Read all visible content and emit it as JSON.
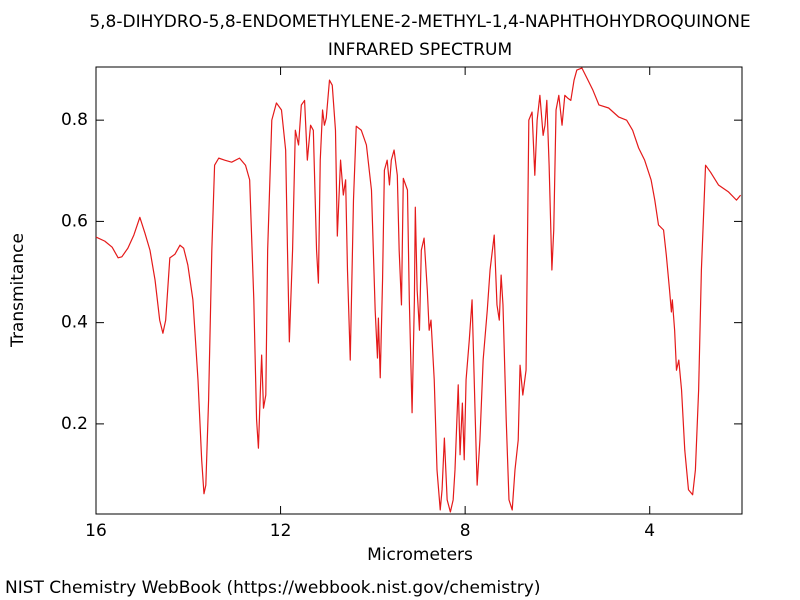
{
  "chart_data": {
    "type": "line",
    "title": "5,8-DIHYDRO-5,8-ENDOMETHYLENE-2-METHYL-1,4-NAPHTHOHYDROQUINONE",
    "subtitle": "INFRARED SPECTRUM",
    "x_label": "Micrometers",
    "y_label": "Transmitance",
    "footer": "NIST Chemistry WebBook (https://webbook.nist.gov/chemistry)",
    "color": "#e41a1a",
    "xlim": [
      16,
      2
    ],
    "ylim": [
      0.022,
      0.905
    ],
    "xticks": [
      16,
      12,
      8,
      4
    ],
    "yticks": [
      0.8,
      0.6,
      0.4,
      0.2
    ],
    "x": [
      16.0,
      15.81,
      15.65,
      15.52,
      15.44,
      15.31,
      15.18,
      15.05,
      14.94,
      14.83,
      14.72,
      14.62,
      14.55,
      14.49,
      14.4,
      14.29,
      14.18,
      14.1,
      14.01,
      13.9,
      13.79,
      13.71,
      13.66,
      13.62,
      13.56,
      13.49,
      13.43,
      13.34,
      13.21,
      13.06,
      12.89,
      12.76,
      12.67,
      12.58,
      12.52,
      12.48,
      12.43,
      12.41,
      12.37,
      12.32,
      12.28,
      12.19,
      12.09,
      11.98,
      11.89,
      11.85,
      11.81,
      11.74,
      11.68,
      11.61,
      11.55,
      11.48,
      11.42,
      11.35,
      11.29,
      11.22,
      11.18,
      11.14,
      11.09,
      11.05,
      11.01,
      10.94,
      10.88,
      10.81,
      10.77,
      10.7,
      10.64,
      10.59,
      10.55,
      10.49,
      10.42,
      10.36,
      10.25,
      10.14,
      10.03,
      9.95,
      9.9,
      9.88,
      9.84,
      9.79,
      9.75,
      9.69,
      9.64,
      9.6,
      9.54,
      9.47,
      9.43,
      9.38,
      9.34,
      9.25,
      9.21,
      9.15,
      9.1,
      9.08,
      9.04,
      8.99,
      8.95,
      8.89,
      8.82,
      8.78,
      8.74,
      8.67,
      8.61,
      8.54,
      8.5,
      8.45,
      8.39,
      8.32,
      8.26,
      8.22,
      8.15,
      8.11,
      8.06,
      8.02,
      7.98,
      7.91,
      7.85,
      7.78,
      7.74,
      7.68,
      7.61,
      7.52,
      7.46,
      7.37,
      7.31,
      7.26,
      7.22,
      7.18,
      7.11,
      7.05,
      6.98,
      6.92,
      6.85,
      6.81,
      6.75,
      6.68,
      6.62,
      6.55,
      6.49,
      6.44,
      6.38,
      6.31,
      6.27,
      6.23,
      6.18,
      6.12,
      6.08,
      6.03,
      5.97,
      5.9,
      5.84,
      5.77,
      5.71,
      5.64,
      5.58,
      5.47,
      5.36,
      5.23,
      5.1,
      4.89,
      4.67,
      4.5,
      4.37,
      4.24,
      4.11,
      3.97,
      3.89,
      3.81,
      3.7,
      3.64,
      3.57,
      3.53,
      3.51,
      3.46,
      3.42,
      3.37,
      3.31,
      3.24,
      3.16,
      3.07,
      3.01,
      2.94,
      2.88,
      2.79,
      2.68,
      2.51,
      2.29,
      2.12,
      2.03
    ],
    "values": [
      0.569,
      0.561,
      0.549,
      0.528,
      0.53,
      0.547,
      0.573,
      0.608,
      0.577,
      0.543,
      0.484,
      0.405,
      0.379,
      0.405,
      0.528,
      0.535,
      0.553,
      0.547,
      0.514,
      0.445,
      0.287,
      0.129,
      0.062,
      0.079,
      0.247,
      0.543,
      0.711,
      0.725,
      0.721,
      0.717,
      0.725,
      0.711,
      0.682,
      0.445,
      0.208,
      0.152,
      0.287,
      0.336,
      0.231,
      0.257,
      0.543,
      0.8,
      0.834,
      0.82,
      0.741,
      0.543,
      0.362,
      0.543,
      0.78,
      0.751,
      0.83,
      0.839,
      0.721,
      0.79,
      0.78,
      0.543,
      0.478,
      0.721,
      0.82,
      0.79,
      0.804,
      0.879,
      0.869,
      0.78,
      0.571,
      0.721,
      0.652,
      0.682,
      0.504,
      0.326,
      0.642,
      0.788,
      0.78,
      0.751,
      0.662,
      0.425,
      0.33,
      0.409,
      0.291,
      0.484,
      0.701,
      0.721,
      0.672,
      0.721,
      0.741,
      0.691,
      0.543,
      0.435,
      0.685,
      0.662,
      0.445,
      0.222,
      0.445,
      0.628,
      0.464,
      0.385,
      0.543,
      0.567,
      0.464,
      0.385,
      0.405,
      0.287,
      0.109,
      0.03,
      0.07,
      0.172,
      0.05,
      0.026,
      0.05,
      0.109,
      0.277,
      0.139,
      0.241,
      0.129,
      0.287,
      0.366,
      0.445,
      0.208,
      0.079,
      0.168,
      0.326,
      0.425,
      0.504,
      0.573,
      0.435,
      0.405,
      0.494,
      0.435,
      0.208,
      0.05,
      0.03,
      0.109,
      0.168,
      0.316,
      0.257,
      0.306,
      0.8,
      0.816,
      0.691,
      0.8,
      0.849,
      0.77,
      0.79,
      0.839,
      0.711,
      0.504,
      0.583,
      0.82,
      0.849,
      0.79,
      0.849,
      0.843,
      0.839,
      0.879,
      0.899,
      0.903,
      0.883,
      0.859,
      0.83,
      0.824,
      0.806,
      0.8,
      0.78,
      0.745,
      0.721,
      0.682,
      0.642,
      0.593,
      0.583,
      0.533,
      0.464,
      0.421,
      0.445,
      0.385,
      0.306,
      0.326,
      0.267,
      0.148,
      0.07,
      0.06,
      0.109,
      0.267,
      0.504,
      0.711,
      0.697,
      0.672,
      0.658,
      0.642,
      0.652
    ]
  }
}
